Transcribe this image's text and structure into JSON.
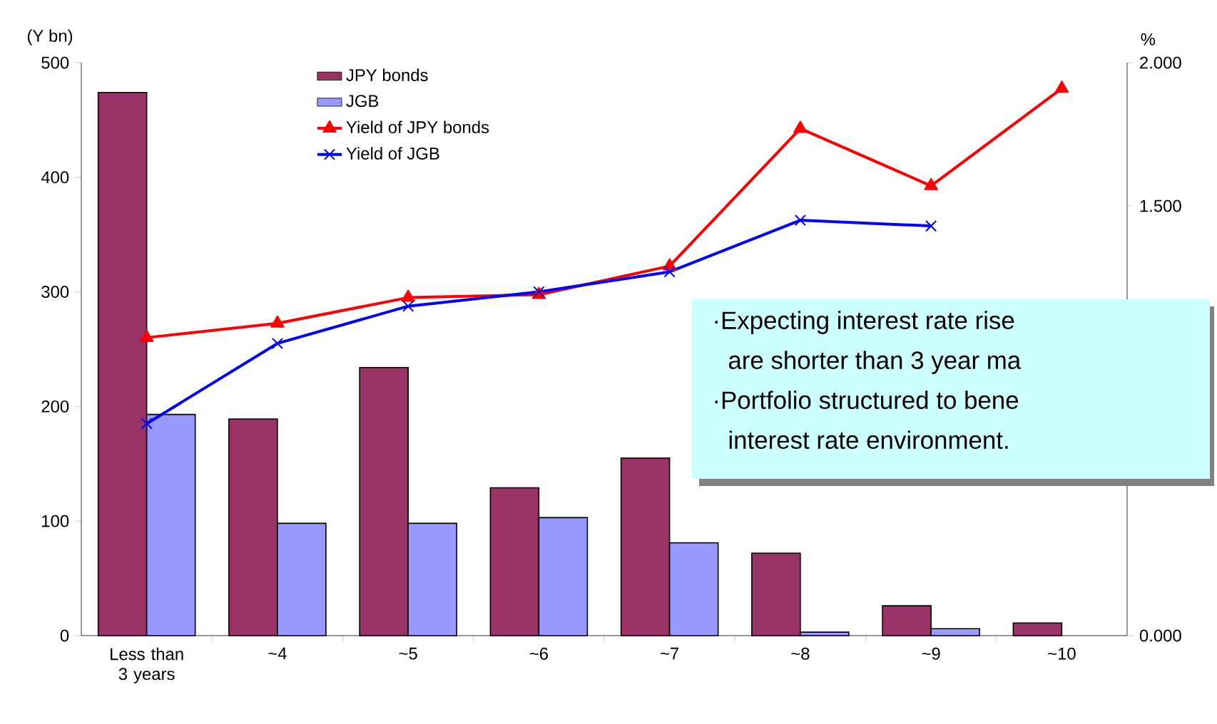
{
  "chart_data": {
    "type": "bar",
    "categories": [
      "Less than 3 years",
      "~4",
      "~5",
      "~6",
      "~7",
      "~8",
      "~9",
      "~10"
    ],
    "ylabel": "(Y bn)",
    "y2label": "%",
    "ylim": [
      0,
      500
    ],
    "yticks": [
      0,
      100,
      200,
      300,
      400,
      500
    ],
    "y2lim": [
      0,
      2
    ],
    "y2ticks": [
      {
        "value": 0,
        "label": "0.000"
      },
      {
        "value": 1.5,
        "label": "1.500"
      },
      {
        "value": 2,
        "label": "2.000"
      }
    ],
    "legend": "top",
    "series": [
      {
        "name": "JPY bonds",
        "color": "#993366",
        "values": [
          474,
          189,
          234,
          129,
          155,
          72,
          26,
          11
        ]
      },
      {
        "name": "JGB",
        "color": "#9999ff",
        "values": [
          193,
          98,
          98,
          103,
          81,
          3,
          6,
          null
        ]
      },
      {
        "name": "Yield of JPY bonds",
        "type": "line",
        "axis": "y2",
        "color": "#ff0000",
        "marker": "triangle",
        "values": [
          1.04,
          1.09,
          1.18,
          1.19,
          1.29,
          1.77,
          1.57,
          1.91
        ]
      },
      {
        "name": "Yield of JGB",
        "type": "line",
        "axis": "y2",
        "color": "#0000ff",
        "marker": "cross",
        "values": [
          0.74,
          1.02,
          1.15,
          1.2,
          1.27,
          1.45,
          1.43,
          null
        ]
      }
    ],
    "annotations": [
      "·Expecting interest rate rise",
      "are shorter than 3 year ma",
      "·Portfolio structured to bene",
      "interest rate environment."
    ]
  }
}
